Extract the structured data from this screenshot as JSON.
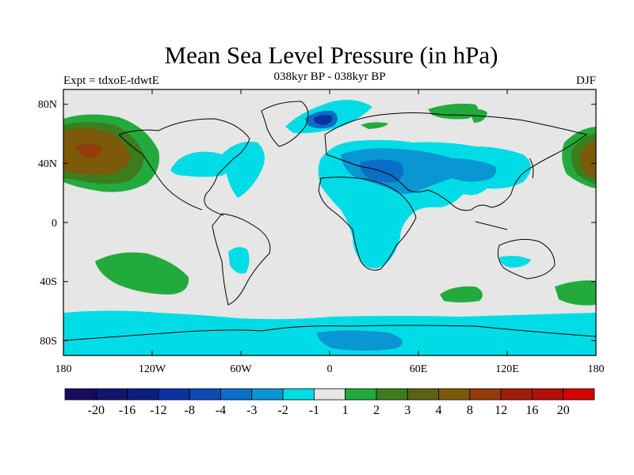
{
  "title": "Mean Sea Level Pressure (in hPa)",
  "subtitle": "038kyr BP - 038kyr BP",
  "left_label": "Expt = tdxoE-tdwtE",
  "right_label": "DJF",
  "x_ticks": [
    "180",
    "120W",
    "60W",
    "0",
    "60E",
    "120E",
    "180"
  ],
  "y_ticks": [
    "80N",
    "40N",
    "0",
    "40S",
    "80S"
  ],
  "colorbar": {
    "colors": [
      "#1a0a5e",
      "#14146e",
      "#0a1e82",
      "#0a32a0",
      "#0a4bb4",
      "#0a6ec8",
      "#0a96d2",
      "#00dce6",
      "#e6e6e6",
      "#23aa3c",
      "#3c7d1e",
      "#5a6414",
      "#7d5a0a",
      "#963c0a",
      "#a01e0a",
      "#b40f0a",
      "#d20000"
    ],
    "labels": [
      "-20",
      "-16",
      "-12",
      "-8",
      "-4",
      "-3",
      "-2",
      "-1",
      "1",
      "2",
      "3",
      "4",
      "8",
      "12",
      "16",
      "20"
    ]
  },
  "map": {
    "lon_range": [
      -180,
      180
    ],
    "lat_range": [
      -90,
      90
    ],
    "background": "#e6e6e6",
    "negative_color_1": "#00dce6",
    "negative_color_2": "#0a96d2",
    "negative_color_3": "#0a6ec8",
    "negative_color_4": "#0a32a0",
    "positive_color_1": "#23aa3c",
    "positive_color_2": "#3c7d1e",
    "positive_color_3": "#7d5a0a",
    "positive_color_4": "#963c0a"
  }
}
